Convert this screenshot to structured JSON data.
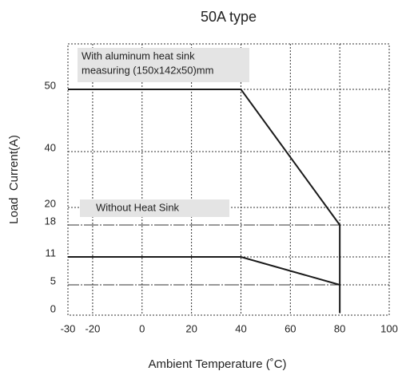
{
  "chart_data": {
    "type": "line",
    "title": "50A type",
    "x_label": "Ambient Temperature (˚C)",
    "y_label": "Load  Current(A)",
    "xlim": [
      -30,
      100
    ],
    "xticks": [
      -30,
      -20,
      0,
      20,
      40,
      60,
      80,
      100
    ],
    "ylim": [
      0,
      50
    ],
    "yticks": [
      0,
      5,
      11,
      18,
      20,
      40,
      50
    ],
    "grid": true,
    "series": [
      {
        "name": "With aluminum heat sink",
        "color": "#1a1a1a",
        "x": [
          -30,
          40,
          80,
          80
        ],
        "values": [
          50,
          50,
          18,
          0
        ]
      },
      {
        "name": "Without Heat Sink",
        "color": "#1a1a1a",
        "x": [
          -30,
          40,
          80
        ],
        "values": [
          11,
          11,
          5
        ]
      }
    ],
    "reference_lines": [
      18,
      5
    ],
    "annotations": [
      {
        "lines": [
          "With aluminum heat sink",
          "measuring (150x142x50)mm"
        ]
      },
      {
        "lines": [
          "Without Heat Sink"
        ]
      }
    ]
  }
}
